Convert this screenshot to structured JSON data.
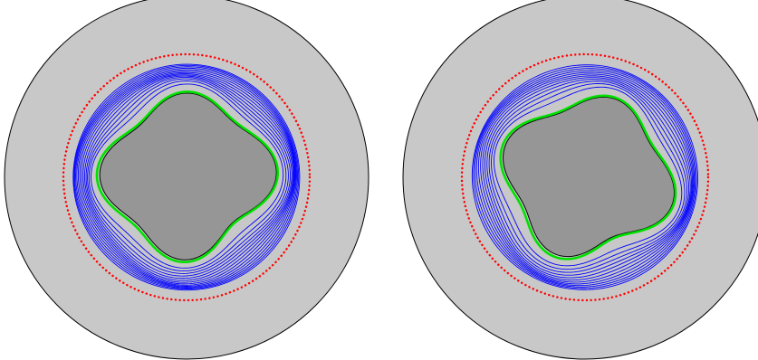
{
  "colors": {
    "background": "#ffffff",
    "domain_fill": "#c8c8c8",
    "domain_stroke": "#000000",
    "obstacle_fill": "#969696",
    "obstacle_stroke": "#000000",
    "initial_curve": "#ff0000",
    "iterates": "#0000ff",
    "final_curve": "#00e000"
  },
  "panels": [
    {
      "name": "panel-left",
      "iterate_count": 14,
      "obstacle_rotation": 0
    },
    {
      "name": "panel-right",
      "iterate_count": 12,
      "obstacle_rotation": 0.35
    }
  ]
}
